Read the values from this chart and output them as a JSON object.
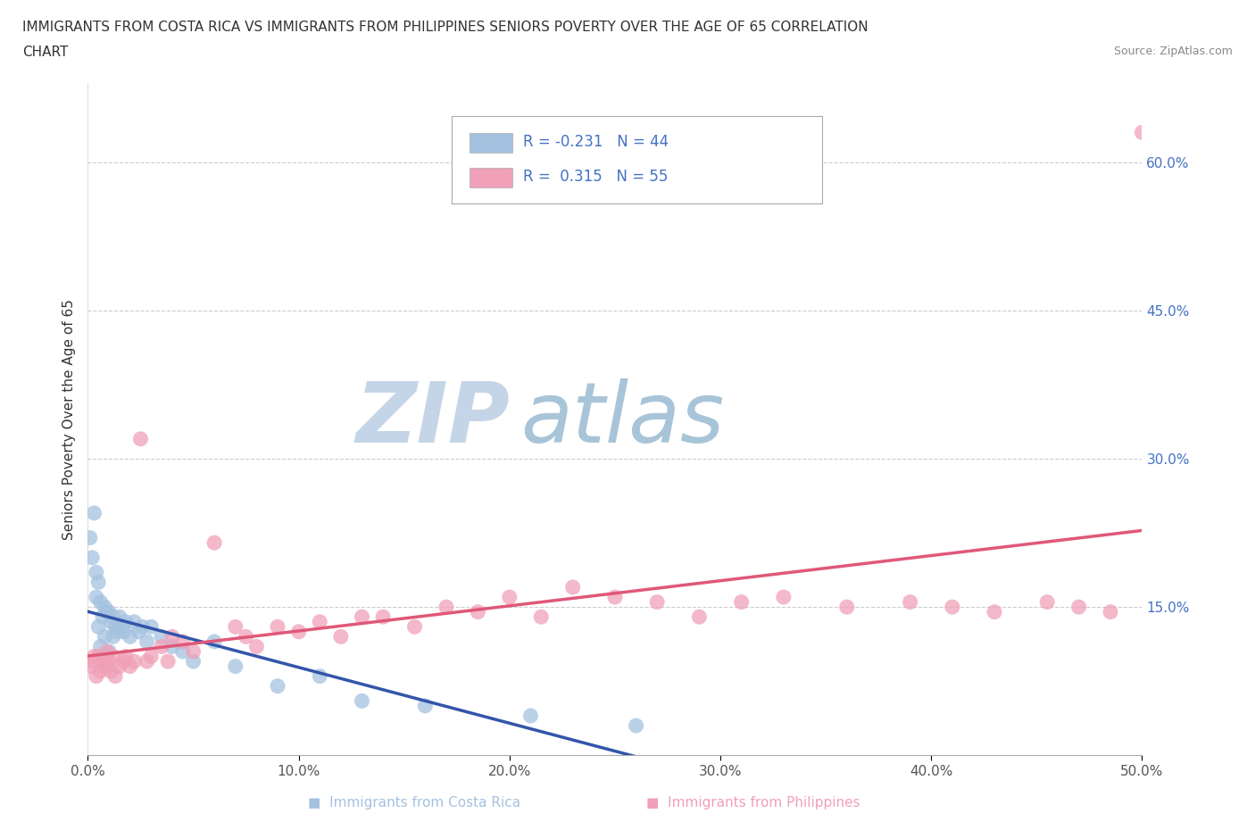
{
  "title_line1": "IMMIGRANTS FROM COSTA RICA VS IMMIGRANTS FROM PHILIPPINES SENIORS POVERTY OVER THE AGE OF 65 CORRELATION",
  "title_line2": "CHART",
  "source": "Source: ZipAtlas.com",
  "ylabel": "Seniors Poverty Over the Age of 65",
  "xlim": [
    0.0,
    0.5
  ],
  "ylim": [
    0.0,
    0.68
  ],
  "xticks": [
    0.0,
    0.1,
    0.2,
    0.3,
    0.4,
    0.5
  ],
  "xticklabels": [
    "0.0%",
    "10.0%",
    "20.0%",
    "30.0%",
    "40.0%",
    "50.0%"
  ],
  "ytick_positions": [
    0.15,
    0.3,
    0.45,
    0.6
  ],
  "yticklabels": [
    "15.0%",
    "30.0%",
    "45.0%",
    "60.0%"
  ],
  "background_color": "#ffffff",
  "watermark_zip_color": "#c5d5e8",
  "watermark_atlas_color": "#a8c4d8",
  "costa_rica_color": "#a4c2e0",
  "costa_rica_line_color": "#3355aa",
  "costa_rica_R": -0.231,
  "costa_rica_N": 44,
  "philippines_color": "#f0a0b8",
  "philippines_line_color": "#e05878",
  "philippines_R": 0.315,
  "philippines_N": 55,
  "tick_color": "#4472c4",
  "tick_fontsize": 11,
  "grid_color": "#cccccc",
  "costa_rica_x": [
    0.001,
    0.002,
    0.003,
    0.004,
    0.004,
    0.005,
    0.005,
    0.006,
    0.006,
    0.007,
    0.007,
    0.008,
    0.008,
    0.009,
    0.009,
    0.01,
    0.01,
    0.011,
    0.012,
    0.012,
    0.013,
    0.014,
    0.015,
    0.016,
    0.017,
    0.018,
    0.02,
    0.022,
    0.024,
    0.026,
    0.028,
    0.03,
    0.035,
    0.04,
    0.045,
    0.05,
    0.06,
    0.07,
    0.09,
    0.11,
    0.13,
    0.16,
    0.21,
    0.26
  ],
  "costa_rica_y": [
    0.22,
    0.2,
    0.245,
    0.185,
    0.16,
    0.175,
    0.13,
    0.155,
    0.11,
    0.14,
    0.1,
    0.15,
    0.12,
    0.145,
    0.09,
    0.145,
    0.105,
    0.135,
    0.14,
    0.12,
    0.13,
    0.125,
    0.14,
    0.13,
    0.125,
    0.135,
    0.12,
    0.135,
    0.125,
    0.13,
    0.115,
    0.13,
    0.12,
    0.11,
    0.105,
    0.095,
    0.115,
    0.09,
    0.07,
    0.08,
    0.055,
    0.05,
    0.04,
    0.03
  ],
  "philippines_x": [
    0.001,
    0.002,
    0.003,
    0.004,
    0.005,
    0.006,
    0.007,
    0.008,
    0.009,
    0.01,
    0.011,
    0.012,
    0.013,
    0.015,
    0.017,
    0.018,
    0.02,
    0.022,
    0.025,
    0.028,
    0.03,
    0.035,
    0.038,
    0.04,
    0.045,
    0.05,
    0.06,
    0.07,
    0.075,
    0.08,
    0.09,
    0.1,
    0.11,
    0.12,
    0.13,
    0.14,
    0.155,
    0.17,
    0.185,
    0.2,
    0.215,
    0.23,
    0.25,
    0.27,
    0.29,
    0.31,
    0.33,
    0.36,
    0.39,
    0.41,
    0.43,
    0.455,
    0.47,
    0.485,
    0.5
  ],
  "philippines_y": [
    0.09,
    0.095,
    0.1,
    0.08,
    0.1,
    0.085,
    0.095,
    0.09,
    0.105,
    0.095,
    0.085,
    0.1,
    0.08,
    0.09,
    0.095,
    0.1,
    0.09,
    0.095,
    0.32,
    0.095,
    0.1,
    0.11,
    0.095,
    0.12,
    0.115,
    0.105,
    0.215,
    0.13,
    0.12,
    0.11,
    0.13,
    0.125,
    0.135,
    0.12,
    0.14,
    0.14,
    0.13,
    0.15,
    0.145,
    0.16,
    0.14,
    0.17,
    0.16,
    0.155,
    0.14,
    0.155,
    0.16,
    0.15,
    0.155,
    0.15,
    0.145,
    0.155,
    0.15,
    0.145,
    0.63
  ]
}
